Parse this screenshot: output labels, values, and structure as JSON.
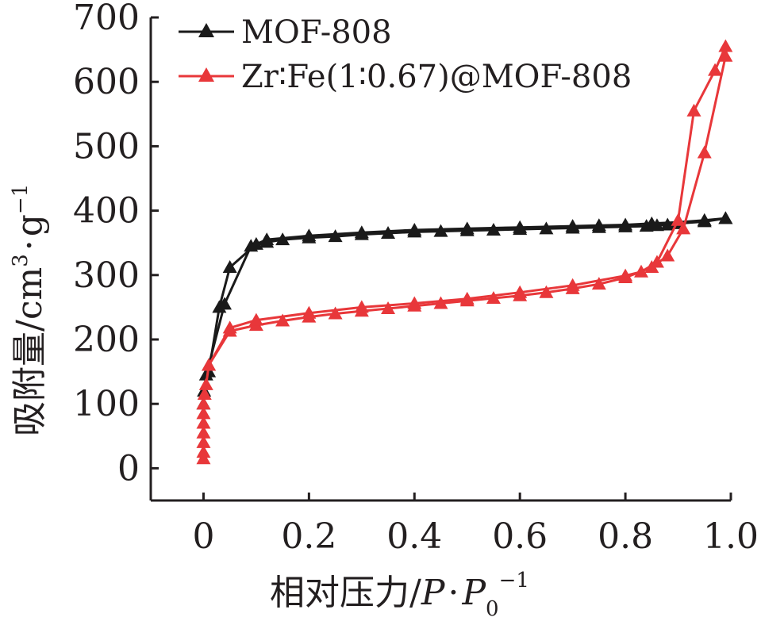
{
  "colors": {
    "axis": "#231f20",
    "black_series": "#1a1a1a",
    "red_series": "#e8373a"
  },
  "chart_data": {
    "type": "line",
    "xlabel": {
      "main": "相对压力/",
      "p": "P",
      "dot": "·",
      "p0": "P",
      "sub": "0",
      "sup": "−1"
    },
    "ylabel": {
      "main": "吸附量/cm",
      "sup3": "3",
      "dot": "·",
      "g": "g",
      "supm1": "−1"
    },
    "xlim": [
      -0.1,
      1.0
    ],
    "ylim": [
      -50,
      700
    ],
    "xticks": [
      0,
      0.2,
      0.4,
      0.6,
      0.8,
      1.0
    ],
    "xtick_labels": [
      "0",
      "0.2",
      "0.4",
      "0.6",
      "0.8",
      "1.0"
    ],
    "yticks": [
      0,
      100,
      200,
      300,
      400,
      500,
      600,
      700
    ],
    "ytick_labels": [
      "0",
      "100",
      "200",
      "300",
      "400",
      "500",
      "600",
      "700"
    ],
    "legend_position": "top-left",
    "series": [
      {
        "name": "MOF-808",
        "color": "#1a1a1a",
        "marker": "triangle",
        "adsorption": [
          [
            0.0,
            100
          ],
          [
            0.001,
            120
          ],
          [
            0.005,
            145
          ],
          [
            0.01,
            160
          ],
          [
            0.04,
            255
          ],
          [
            0.09,
            345
          ],
          [
            0.12,
            351
          ],
          [
            0.15,
            355
          ],
          [
            0.2,
            358
          ],
          [
            0.25,
            360
          ],
          [
            0.3,
            363
          ],
          [
            0.35,
            365
          ],
          [
            0.4,
            367
          ],
          [
            0.45,
            368
          ],
          [
            0.5,
            369
          ],
          [
            0.55,
            370
          ],
          [
            0.6,
            371
          ],
          [
            0.65,
            372
          ],
          [
            0.7,
            373
          ],
          [
            0.75,
            374
          ],
          [
            0.8,
            375
          ],
          [
            0.84,
            376
          ],
          [
            0.86,
            377
          ],
          [
            0.88,
            378
          ],
          [
            0.9,
            380
          ],
          [
            0.95,
            383
          ],
          [
            0.99,
            388
          ]
        ],
        "desorption": [
          [
            0.99,
            388
          ],
          [
            0.95,
            385
          ],
          [
            0.9,
            382
          ],
          [
            0.85,
            380
          ],
          [
            0.8,
            378
          ],
          [
            0.75,
            377
          ],
          [
            0.7,
            376
          ],
          [
            0.6,
            374
          ],
          [
            0.5,
            372
          ],
          [
            0.4,
            370
          ],
          [
            0.3,
            366
          ],
          [
            0.2,
            361
          ],
          [
            0.12,
            355
          ],
          [
            0.1,
            348
          ],
          [
            0.05,
            312
          ],
          [
            0.03,
            250
          ],
          [
            0.01,
            150
          ]
        ]
      },
      {
        "name": "Zr∶Fe(1∶0.67)@MOF-808",
        "color": "#e8373a",
        "marker": "triangle",
        "adsorption": [
          [
            0.0,
            15
          ],
          [
            0.0,
            25
          ],
          [
            0.0,
            40
          ],
          [
            0.0,
            55
          ],
          [
            0.0,
            70
          ],
          [
            0.0,
            85
          ],
          [
            0.0,
            100
          ],
          [
            0.002,
            115
          ],
          [
            0.005,
            130
          ],
          [
            0.01,
            160
          ],
          [
            0.05,
            213
          ],
          [
            0.1,
            222
          ],
          [
            0.15,
            229
          ],
          [
            0.2,
            235
          ],
          [
            0.25,
            240
          ],
          [
            0.3,
            244
          ],
          [
            0.35,
            248
          ],
          [
            0.4,
            252
          ],
          [
            0.45,
            256
          ],
          [
            0.5,
            260
          ],
          [
            0.55,
            264
          ],
          [
            0.6,
            268
          ],
          [
            0.65,
            273
          ],
          [
            0.7,
            279
          ],
          [
            0.75,
            286
          ],
          [
            0.8,
            296
          ],
          [
            0.85,
            312
          ],
          [
            0.88,
            330
          ],
          [
            0.91,
            372
          ],
          [
            0.95,
            490
          ],
          [
            0.99,
            640
          ]
        ],
        "desorption": [
          [
            0.99,
            655
          ],
          [
            0.97,
            618
          ],
          [
            0.93,
            555
          ],
          [
            0.9,
            385
          ],
          [
            0.86,
            320
          ],
          [
            0.83,
            305
          ],
          [
            0.8,
            299
          ],
          [
            0.7,
            284
          ],
          [
            0.6,
            273
          ],
          [
            0.5,
            263
          ],
          [
            0.4,
            256
          ],
          [
            0.3,
            250
          ],
          [
            0.2,
            241
          ],
          [
            0.1,
            230
          ],
          [
            0.05,
            218
          ],
          [
            0.01,
            160
          ]
        ]
      }
    ]
  }
}
